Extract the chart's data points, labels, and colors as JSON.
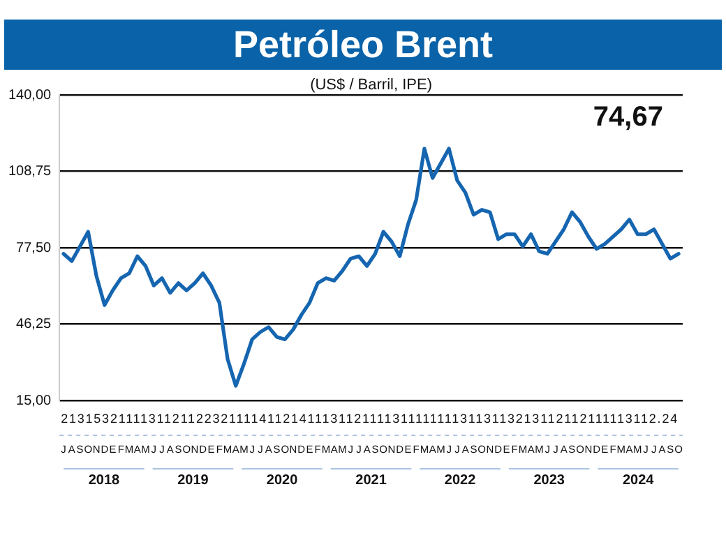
{
  "chart_data": {
    "type": "line",
    "title": "Petróleo Brent",
    "subtitle": "(US$ / Barril, IPE)",
    "categories": [
      "J",
      "A",
      "S",
      "O",
      "N",
      "D",
      "E",
      "F",
      "M",
      "A",
      "M",
      "J",
      "J",
      "A",
      "S",
      "O",
      "N",
      "D",
      "E",
      "F",
      "M",
      "A",
      "M",
      "J",
      "J",
      "A",
      "S",
      "O",
      "N",
      "D",
      "E",
      "F",
      "M",
      "A",
      "M",
      "J",
      "J",
      "A",
      "S",
      "O",
      "N",
      "D",
      "E",
      "F",
      "M",
      "A",
      "M",
      "J",
      "J",
      "A",
      "S",
      "O",
      "N",
      "D",
      "E",
      "F",
      "M",
      "A",
      "M",
      "J",
      "J",
      "A",
      "S",
      "O",
      "N",
      "D",
      "E",
      "F",
      "M",
      "A",
      "M",
      "J",
      "J",
      "A",
      "S",
      "O"
    ],
    "series": [
      {
        "color": "#1565b0",
        "values": [
          75,
          72,
          78,
          84,
          66,
          54,
          60,
          65,
          67,
          74,
          70,
          62,
          65,
          59,
          63,
          60,
          63,
          67,
          62,
          55,
          32,
          21,
          30,
          40,
          43,
          45,
          41,
          40,
          44,
          50,
          55,
          63,
          65,
          64,
          68,
          73,
          74,
          70,
          75,
          84,
          80,
          74,
          87,
          97,
          118,
          106,
          112,
          118,
          105,
          100,
          91,
          93,
          92,
          81,
          83,
          83,
          78,
          83,
          76,
          75,
          80,
          85,
          92,
          88,
          82,
          77,
          79,
          82,
          85,
          89,
          83,
          83,
          85,
          79,
          73,
          75
        ]
      }
    ],
    "ylim": [
      15,
      140
    ],
    "yticks": [
      {
        "value": 15,
        "label": "15,00"
      },
      {
        "value": 46.25,
        "label": "46,25"
      },
      {
        "value": 77.5,
        "label": "77,50"
      },
      {
        "value": 108.75,
        "label": "108,75"
      },
      {
        "value": 140,
        "label": "140,00"
      }
    ],
    "grid": "y",
    "legend": false,
    "annotations": [
      "74,67",
      "2131532111131121122321111411214111311211113111111113113113213112112111113112.24",
      "2018",
      "2019",
      "2020",
      "2021",
      "2022",
      "2023",
      "2024"
    ]
  }
}
